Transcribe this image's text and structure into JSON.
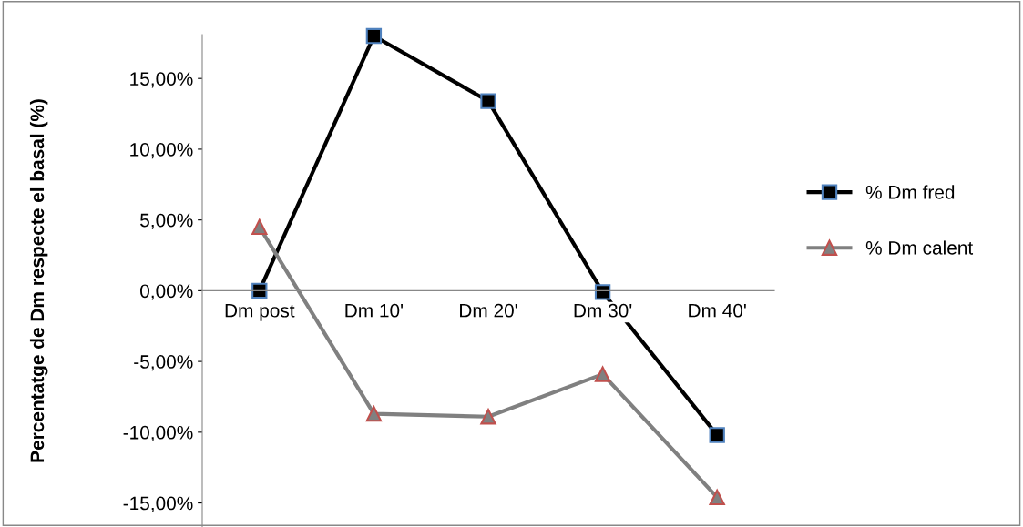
{
  "chart_data": {
    "type": "line",
    "ylabel": "Percentatge de Dm respecte el basal (%)",
    "categories": [
      "Dm post",
      "Dm 10'",
      "Dm 20'",
      "Dm 30'",
      "Dm 40'"
    ],
    "series": [
      {
        "name": "% Dm fred",
        "color": "#000000",
        "marker": "square",
        "values": [
          0.0,
          18.0,
          13.4,
          -0.1,
          -10.2
        ]
      },
      {
        "name": "% Dm calent",
        "color": "#808080",
        "marker": "triangle",
        "values": [
          4.5,
          -8.7,
          -8.9,
          -5.9,
          -14.6
        ]
      }
    ],
    "ylim": [
      -16.7,
      18.1
    ],
    "yticks": [
      {
        "value": -15,
        "label": "-15,00%"
      },
      {
        "value": -10,
        "label": "-10,00%"
      },
      {
        "value": -5,
        "label": "-5,00%"
      },
      {
        "value": 0,
        "label": "0,00%"
      },
      {
        "value": 5,
        "label": "5,00%"
      },
      {
        "value": 10,
        "label": "10,00%"
      },
      {
        "value": 15,
        "label": "15,00%"
      }
    ],
    "grid": false,
    "legend": "right",
    "line_style": "solid"
  }
}
